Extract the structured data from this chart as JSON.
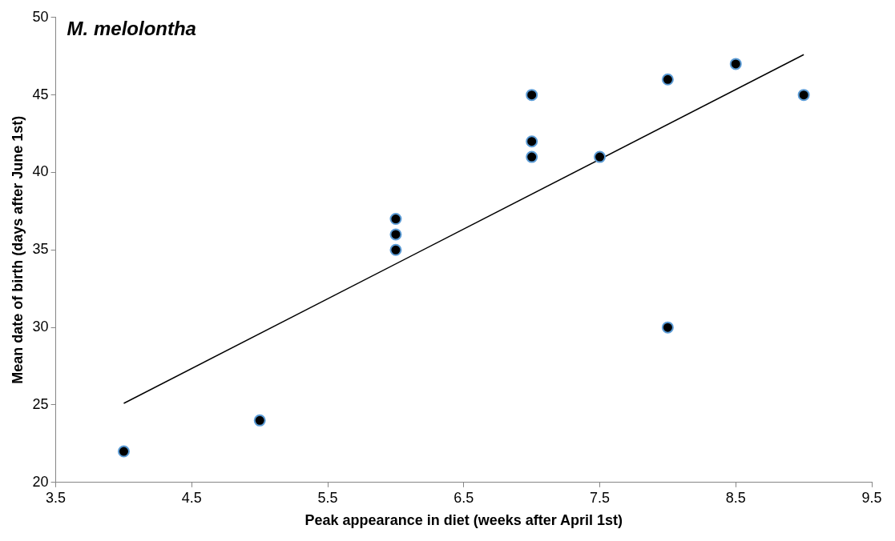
{
  "chart_data": {
    "type": "scatter",
    "title": "M. melolontha",
    "xlabel": "Peak appearance in diet (weeks after April 1st)",
    "ylabel": "Mean date of birth (days after June 1st)",
    "xlim": [
      3.5,
      9.5
    ],
    "xticks": [
      3.5,
      4.5,
      5.5,
      6.5,
      7.5,
      8.5,
      9.5
    ],
    "ylim": [
      20,
      50
    ],
    "yticks": [
      20,
      25,
      30,
      35,
      40,
      45,
      50
    ],
    "grid": false,
    "legend": false,
    "marker": "circle",
    "series": [
      {
        "type": "scatter",
        "color": "#000000",
        "x": [
          4,
          5,
          6,
          6,
          6,
          7,
          7,
          7,
          7.5,
          8,
          8,
          8.5,
          9
        ],
        "values": [
          22,
          24,
          37,
          36,
          35,
          45,
          42,
          41,
          41,
          46,
          30,
          47,
          45
        ]
      },
      {
        "type": "line",
        "color": "#000000",
        "x": [
          4,
          9
        ],
        "values": [
          25.1,
          47.6
        ],
        "marker": "none",
        "line_style": "solid"
      }
    ]
  }
}
